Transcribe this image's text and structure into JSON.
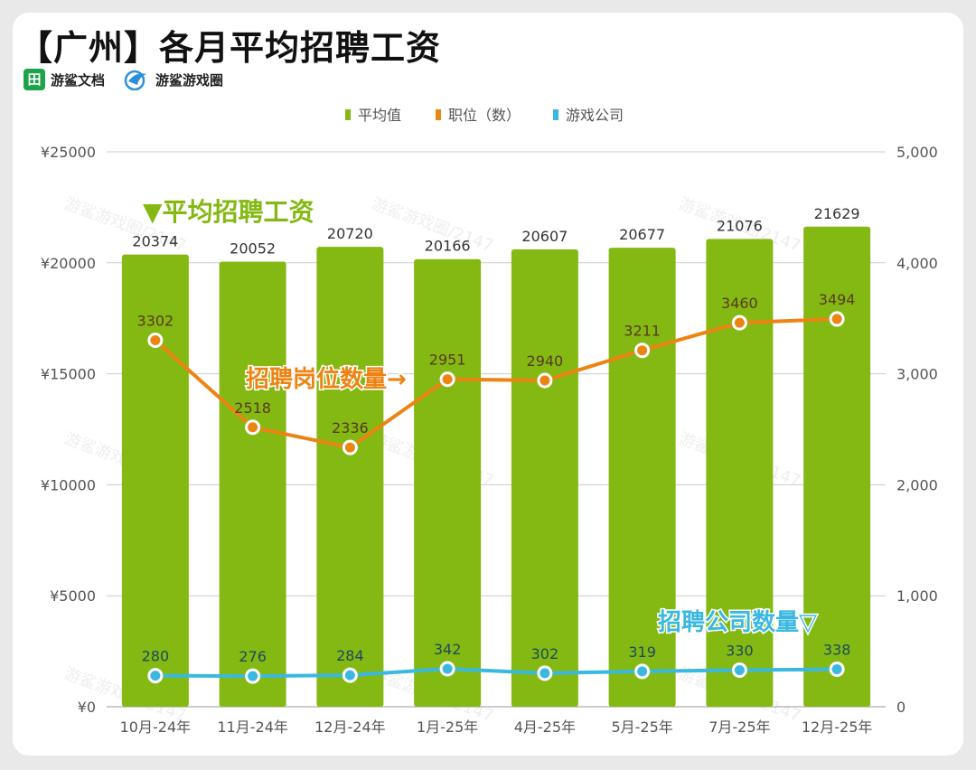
{
  "title": "【广州】各月平均招聘工资",
  "brands": [
    {
      "label": "游鲨文档",
      "icon": "sheet-logo-icon"
    },
    {
      "label": "游鲨游戏圈",
      "icon": "shark-logo-icon"
    }
  ],
  "colors": {
    "bar": "#84b913",
    "positions": "#ec8414",
    "companies": "#3ab8e0",
    "grid": "#cccccc"
  },
  "chart_data": {
    "type": "bar",
    "categories": [
      "10月-24年",
      "11月-24年",
      "12月-24年",
      "1月-25年",
      "4月-25年",
      "5月-25年",
      "7月-25年",
      "12月-25年"
    ],
    "series": [
      {
        "name": "平均值",
        "type": "bar",
        "axis": "left",
        "values": [
          20374,
          20052,
          20720,
          20166,
          20607,
          20677,
          21076,
          21629
        ]
      },
      {
        "name": "职位（数）",
        "type": "line",
        "axis": "right",
        "values": [
          3302,
          2518,
          2336,
          2951,
          2940,
          3211,
          3460,
          3494
        ]
      },
      {
        "name": "游戏公司",
        "type": "line",
        "axis": "right",
        "values": [
          280,
          276,
          284,
          342,
          302,
          319,
          330,
          338
        ]
      }
    ],
    "y_left": {
      "min": 0,
      "max": 25000,
      "ticks": [
        "¥0",
        "¥5000",
        "¥10000",
        "¥15000",
        "¥20000",
        "¥25000"
      ]
    },
    "y_right": {
      "min": 0,
      "max": 5000,
      "ticks": [
        "0",
        "1,000",
        "2,000",
        "3,000",
        "4,000",
        "5,000"
      ]
    },
    "legend_position": "top-center",
    "annotations": {
      "salary": "▼平均招聘工资",
      "positions": "招聘岗位数量→",
      "companies": "招聘公司数量▽"
    },
    "watermark": "游鲨游戏圈/2147"
  }
}
